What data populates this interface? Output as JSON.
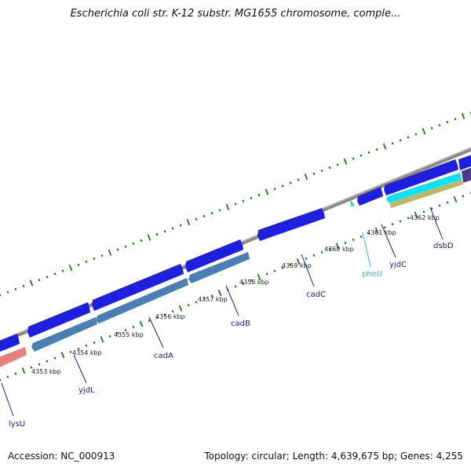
{
  "title": "Escherichia coli str. K-12 substr. MG1655 chromosome, comple...",
  "footer": {
    "accession": "Accession: NC_000913",
    "summary": "Topology: circular; Length: 4,639,675 bp; Genes: 4,255"
  },
  "colors": {
    "backbone": "#8a8a8a",
    "cds_forward": "#1f1fe0",
    "cds_reverse": "#4a7fb5",
    "rrna": "#e88080",
    "trna": "#40c8f0",
    "tick": "#1a7a1a",
    "label": "#1a1aa0",
    "trna_label": "#30b8e8"
  },
  "kbp_ticks": [
    "4353 kbp",
    "4354 kbp",
    "4355 kbp",
    "4356 kbp",
    "4357 kbp",
    "4358 kbp",
    "4359 kbp",
    "4360 kbp",
    "4361 kbp",
    "4362 kbp"
  ],
  "genes": [
    {
      "name": "lysU",
      "color": "label"
    },
    {
      "name": "yjdL",
      "color": "label"
    },
    {
      "name": "cadA",
      "color": "label"
    },
    {
      "name": "cadB",
      "color": "label"
    },
    {
      "name": "cadC",
      "color": "label"
    },
    {
      "name": "pheU",
      "color": "trna_label"
    },
    {
      "name": "yjdC",
      "color": "label"
    },
    {
      "name": "dsbD",
      "color": "label"
    }
  ]
}
